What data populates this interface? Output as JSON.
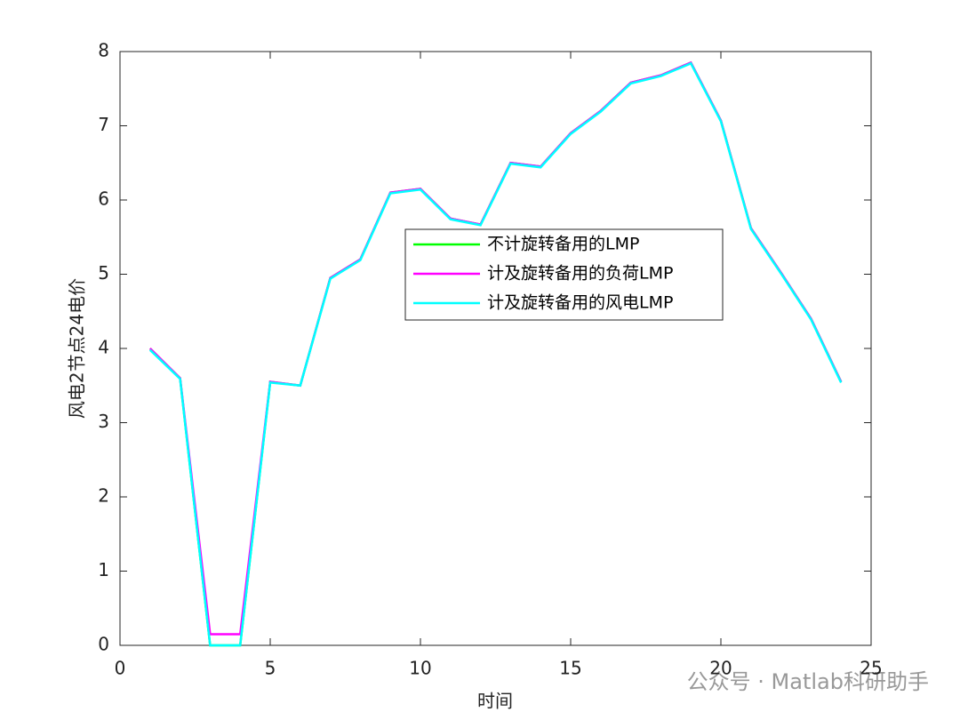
{
  "chart_data": {
    "type": "line",
    "xlabel": "时间",
    "ylabel": "风电2节点24电价",
    "x": [
      1,
      2,
      3,
      4,
      5,
      6,
      7,
      8,
      9,
      10,
      11,
      12,
      13,
      14,
      15,
      16,
      17,
      18,
      19,
      20,
      21,
      22,
      23,
      24
    ],
    "series": [
      {
        "name": "不计旋转备用的LMP",
        "color": "#00ff00",
        "values": [
          4.0,
          3.6,
          0,
          0,
          3.55,
          3.5,
          4.95,
          5.2,
          6.1,
          6.15,
          5.75,
          5.67,
          6.5,
          6.45,
          6.9,
          7.2,
          7.58,
          7.68,
          7.85,
          7.07,
          5.62,
          5.02,
          4.4,
          3.55
        ]
      },
      {
        "name": "计及旋转备用的负荷LMP",
        "color": "#ff00ff",
        "values": [
          4.0,
          3.6,
          0.15,
          0.15,
          3.55,
          3.5,
          4.95,
          5.2,
          6.1,
          6.15,
          5.75,
          5.67,
          6.5,
          6.45,
          6.9,
          7.2,
          7.58,
          7.68,
          7.85,
          7.07,
          5.62,
          5.02,
          4.4,
          3.55
        ]
      },
      {
        "name": "计及旋转备用的风电LMP",
        "color": "#00ffff",
        "values": [
          3.98,
          3.59,
          0,
          0,
          3.54,
          3.5,
          4.94,
          5.19,
          6.09,
          6.14,
          5.74,
          5.66,
          6.49,
          6.44,
          6.89,
          7.19,
          7.57,
          7.67,
          7.84,
          7.06,
          5.61,
          5.01,
          4.39,
          3.54
        ]
      }
    ],
    "xlim": [
      0,
      25
    ],
    "xticks": [
      0,
      5,
      10,
      15,
      20,
      25
    ],
    "ylim": [
      0,
      8
    ],
    "yticks": [
      0,
      1,
      2,
      3,
      4,
      5,
      6,
      7,
      8
    ],
    "watermark": "公众号 · Matlab科研助手"
  }
}
